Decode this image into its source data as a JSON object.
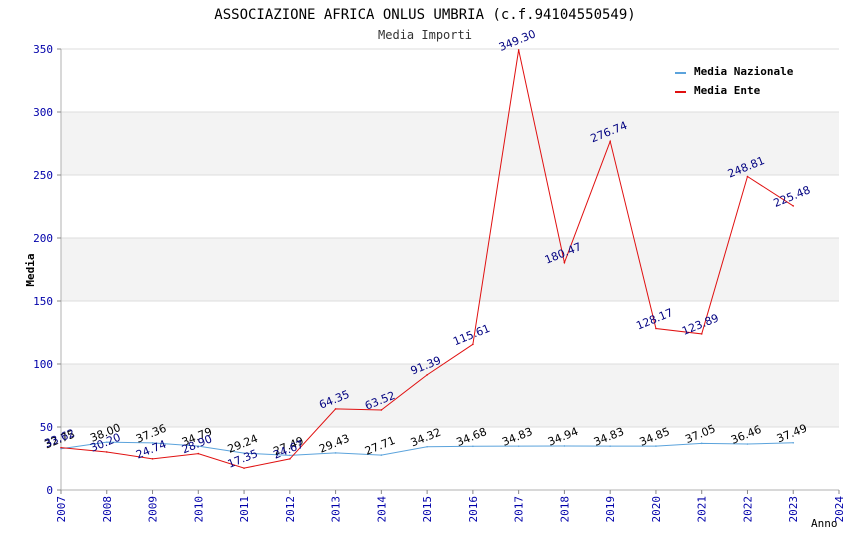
{
  "chart_data": {
    "type": "line",
    "title": "ASSOCIAZIONE AFRICA ONLUS UMBRIA (c.f.94104550549)",
    "subtitle": "Media Importi",
    "xlabel": "Anno",
    "ylabel": "Media",
    "x_ticks": [
      "2007",
      "2008",
      "2009",
      "2010",
      "2011",
      "2012",
      "2013",
      "2014",
      "2015",
      "2016",
      "2017",
      "2018",
      "2019",
      "2020",
      "2021",
      "2022",
      "2023",
      "2024"
    ],
    "y_ticks": [
      "0",
      "50",
      "100",
      "150",
      "200",
      "250",
      "300",
      "350"
    ],
    "xlim": [
      2007,
      2024
    ],
    "ylim": [
      0,
      350
    ],
    "grid": "horizontal bands",
    "legend_position": "top-right",
    "series": [
      {
        "name": "Media Nazionale",
        "color": "#5ba3dc",
        "label_color": "#000000",
        "x": [
          2007,
          2008,
          2009,
          2010,
          2011,
          2012,
          2013,
          2014,
          2015,
          2016,
          2017,
          2018,
          2019,
          2020,
          2021,
          2022,
          2023
        ],
        "values": [
          32.75,
          38.0,
          37.36,
          34.79,
          29.24,
          27.49,
          29.43,
          27.71,
          34.32,
          34.68,
          34.83,
          34.94,
          34.83,
          34.85,
          37.05,
          36.46,
          37.49
        ],
        "labels": [
          "32.75",
          "38.00",
          "37.36",
          "34.79",
          "29.24",
          "27.49",
          "29.43",
          "27.71",
          "34.32",
          "34.68",
          "34.83",
          "34.94",
          "34.83",
          "34.85",
          "37.05",
          "36.46",
          "37.49"
        ]
      },
      {
        "name": "Media Ente",
        "color": "#e01010",
        "label_color": "#000080",
        "x": [
          2007,
          2008,
          2009,
          2010,
          2011,
          2012,
          2013,
          2014,
          2015,
          2016,
          2017,
          2018,
          2019,
          2020,
          2021,
          2022,
          2023
        ],
        "values": [
          33.62,
          30.2,
          24.74,
          28.9,
          17.35,
          24.67,
          64.35,
          63.52,
          91.39,
          115.61,
          349.3,
          180.47,
          276.74,
          128.17,
          123.89,
          248.81,
          225.48
        ],
        "labels": [
          "33.62",
          "30.20",
          "24.74",
          "28.90",
          "17.35",
          "24.67",
          "64.35",
          "63.52",
          "91.39",
          "115.61",
          "349.30",
          "180.47",
          "276.74",
          "128.17",
          "123.89",
          "248.81",
          "225.48"
        ]
      }
    ]
  }
}
